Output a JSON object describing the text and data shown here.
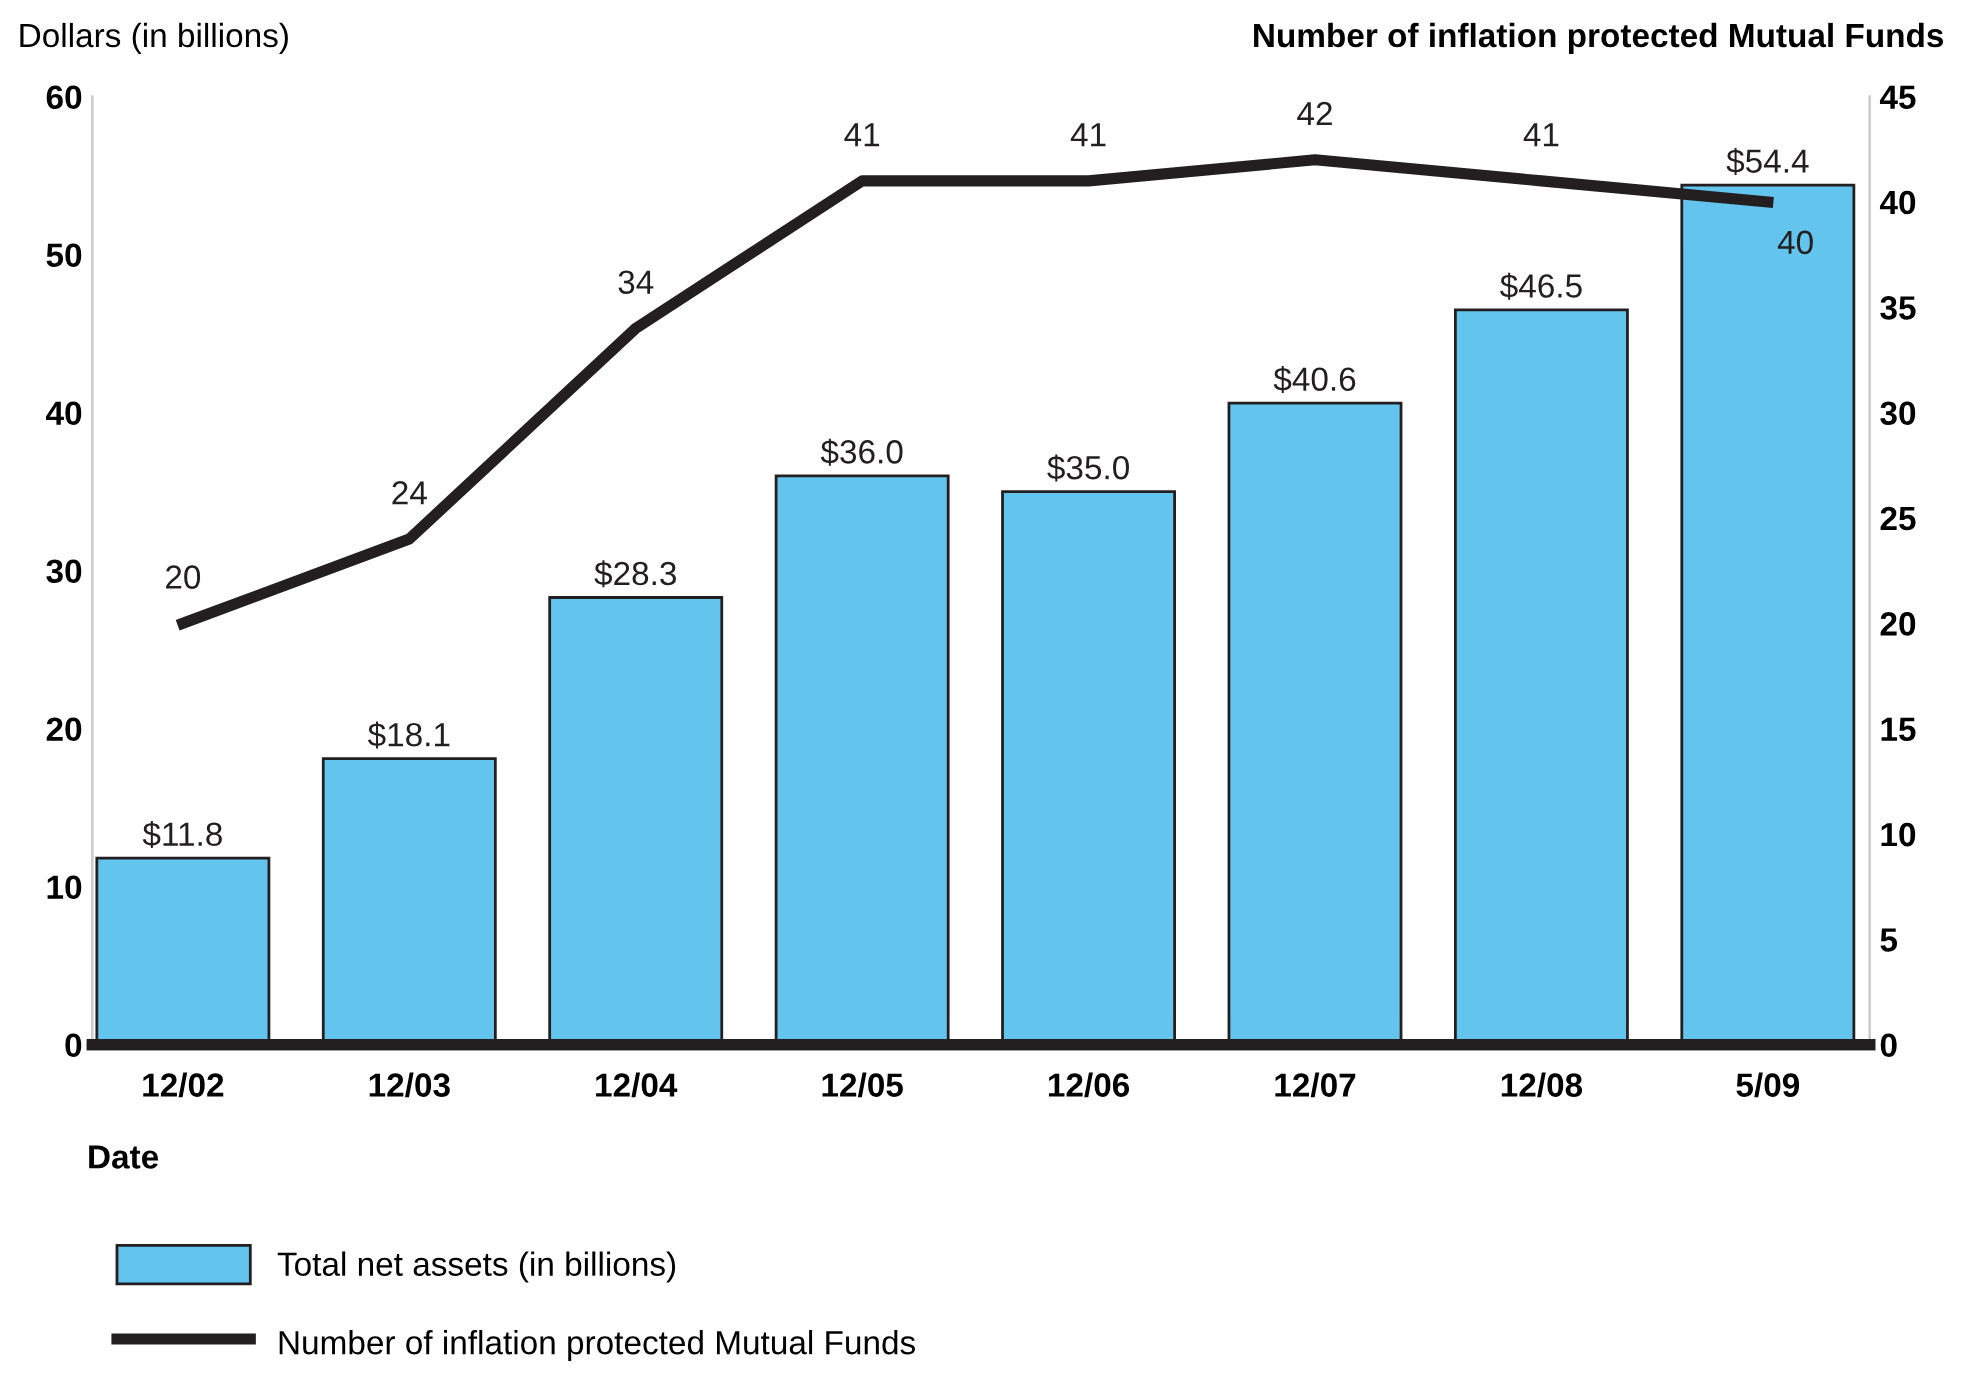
{
  "chart_data": {
    "type": "bar",
    "ylabel": "Dollars (in billions)",
    "y2label": "Number of inflation protected Mutual Funds",
    "xlabel": "Date",
    "categories": [
      "12/02",
      "12/03",
      "12/04",
      "12/05",
      "12/06",
      "12/07",
      "12/08",
      "5/09"
    ],
    "series": [
      {
        "name": "Total net assets (in billions)",
        "color": "#63c5ee",
        "values": [
          11.8,
          18.1,
          28.3,
          36.0,
          35.0,
          40.6,
          46.5,
          54.4
        ],
        "value_labels": [
          "$11.8",
          "$18.1",
          "$28.3",
          "$36.0",
          "$35.0",
          "$40.6",
          "$46.5",
          "$54.4"
        ]
      },
      {
        "name": "Number of inflation protected Mutual Funds",
        "type": "line",
        "axis": "y2",
        "color": "#231f20",
        "values": [
          20,
          24,
          34,
          41,
          41,
          42,
          41,
          40
        ],
        "value_labels": [
          "20",
          "24",
          "34",
          "41",
          "41",
          "42",
          "41",
          "40"
        ]
      }
    ],
    "ylim": [
      0,
      60
    ],
    "yticks": [
      0,
      10,
      20,
      30,
      40,
      50,
      60
    ],
    "y2lim": [
      0,
      45
    ],
    "y2ticks": [
      0,
      5,
      10,
      15,
      20,
      25,
      30,
      35,
      40,
      45
    ],
    "grid": false,
    "legend": "bottom left",
    "marker": "none",
    "line_style": "solid"
  }
}
